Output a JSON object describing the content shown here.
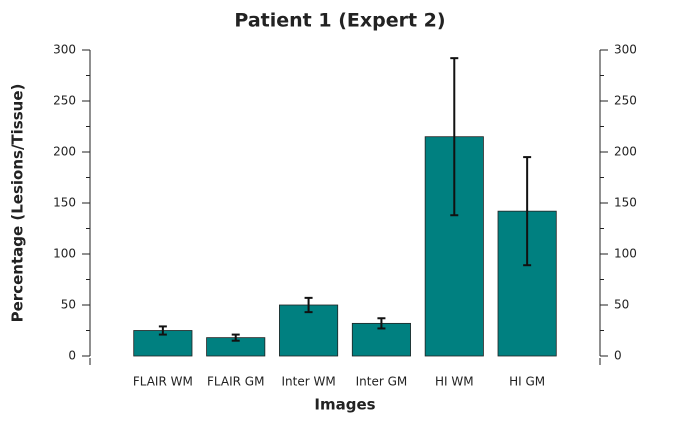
{
  "chart_data": {
    "type": "bar",
    "title": "Patient 1 (Expert 2)",
    "x_label": "Images",
    "y_label": "Percentage (Lesions/Tissue)",
    "categories": [
      "FLAIR WM",
      "FLAIR GM",
      "Inter WM",
      "Inter GM",
      "HI WM",
      "HI GM"
    ],
    "values": [
      25,
      18,
      50,
      32,
      215,
      142
    ],
    "errors": [
      4,
      3,
      7,
      5,
      77,
      53
    ],
    "color": "#008080",
    "ylim": [
      0,
      300
    ],
    "yticks": [
      0,
      50,
      100,
      150,
      200,
      250,
      300
    ],
    "yminorticks": [
      25,
      75,
      125,
      175,
      225,
      275
    ],
    "y2lim": [
      0,
      300
    ],
    "y2ticks": [
      0,
      50,
      100,
      150,
      200,
      250,
      300
    ]
  }
}
